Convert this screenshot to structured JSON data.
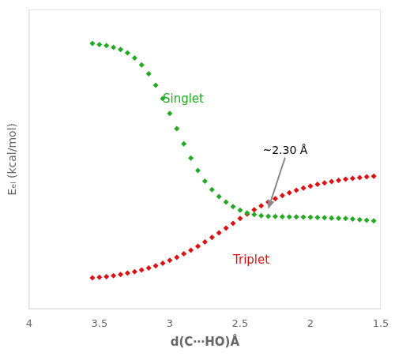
{
  "chart_data": {
    "type": "scatter",
    "xlabel": "d(C⋯HO)Å",
    "ylabel": "Eₑₗ (kcal/mol)",
    "x": [
      3.55,
      3.5,
      3.45,
      3.4,
      3.35,
      3.3,
      3.25,
      3.2,
      3.15,
      3.1,
      3.05,
      3.0,
      2.95,
      2.9,
      2.85,
      2.8,
      2.75,
      2.7,
      2.65,
      2.6,
      2.55,
      2.5,
      2.45,
      2.4,
      2.35,
      2.3,
      2.25,
      2.2,
      2.15,
      2.1,
      2.05,
      2.0,
      1.95,
      1.9,
      1.85,
      1.8,
      1.75,
      1.7,
      1.65,
      1.6,
      1.55
    ],
    "series": [
      {
        "name": "Singlet",
        "color": "#22aa22",
        "marker": "diamond",
        "label_x": 3.05,
        "label_y": 20.0,
        "values": [
          30.0,
          29.8,
          29.6,
          29.3,
          28.9,
          28.3,
          27.4,
          26.2,
          24.6,
          22.6,
          20.2,
          17.6,
          14.9,
          12.2,
          9.7,
          7.5,
          5.6,
          4.1,
          2.9,
          1.9,
          1.1,
          0.5,
          0.0,
          -0.3,
          -0.5,
          -0.6,
          -0.65,
          -0.68,
          -0.7,
          -0.72,
          -0.74,
          -0.76,
          -0.8,
          -0.85,
          -0.9,
          -0.95,
          -1.0,
          -1.1,
          -1.2,
          -1.3,
          -1.4
        ]
      },
      {
        "name": "Triplet",
        "color": "#dd1111",
        "marker": "diamond",
        "label_x": 2.55,
        "label_y": -8.5,
        "values": [
          -11.5,
          -11.4,
          -11.3,
          -11.1,
          -10.9,
          -10.65,
          -10.4,
          -10.1,
          -9.75,
          -9.35,
          -8.9,
          -8.4,
          -7.85,
          -7.25,
          -6.6,
          -5.9,
          -5.15,
          -4.35,
          -3.55,
          -2.7,
          -1.85,
          -1.0,
          -0.2,
          0.55,
          1.25,
          1.9,
          2.5,
          3.05,
          3.55,
          4.0,
          4.4,
          4.75,
          5.05,
          5.3,
          5.55,
          5.75,
          5.95,
          6.1,
          6.25,
          6.38,
          6.5
        ]
      }
    ],
    "annotations": [
      {
        "text": "~2.30 Å",
        "x": 2.18,
        "y": 10.5,
        "arrow": {
          "x": 2.3,
          "y": 0.7,
          "color": "#888888"
        }
      }
    ],
    "xlim": [
      4.0,
      1.5
    ],
    "xticks": [
      4.0,
      3.5,
      3.0,
      2.5,
      2.0,
      1.5
    ],
    "ylim": [
      -17,
      36
    ],
    "yticks": [],
    "tick_labels": "x",
    "grid": false
  }
}
